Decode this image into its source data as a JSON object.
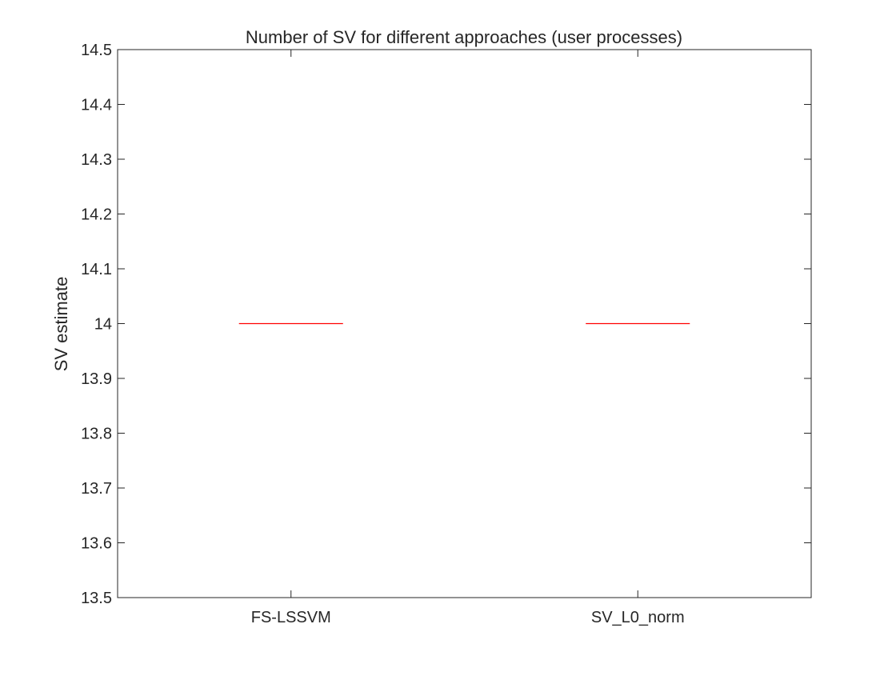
{
  "chart_data": {
    "type": "box",
    "title": "Number of SV for different approaches (user processes)",
    "xlabel": "",
    "ylabel": "SV estimate",
    "categories": [
      "FS-LSSVM",
      "SV_L0_norm"
    ],
    "boxes": [
      {
        "category": "FS-LSSVM",
        "median": 14,
        "q1": 14,
        "q3": 14,
        "whisker_low": 14,
        "whisker_high": 14
      },
      {
        "category": "SV_L0_norm",
        "median": 14,
        "q1": 14,
        "q3": 14,
        "whisker_low": 14,
        "whisker_high": 14
      }
    ],
    "ylim": [
      13.5,
      14.5
    ],
    "yticks": [
      13.5,
      13.6,
      13.7,
      13.8,
      13.9,
      14,
      14.1,
      14.2,
      14.3,
      14.4,
      14.5
    ],
    "ytick_labels": [
      "13.5",
      "13.6",
      "13.7",
      "13.8",
      "13.9",
      "14",
      "14.1",
      "14.2",
      "14.3",
      "14.4",
      "14.5"
    ],
    "grid": false,
    "colors": {
      "median_line": "#ff0000",
      "box": "#0000ff",
      "axes": "#262626",
      "background": "#ffffff"
    }
  }
}
